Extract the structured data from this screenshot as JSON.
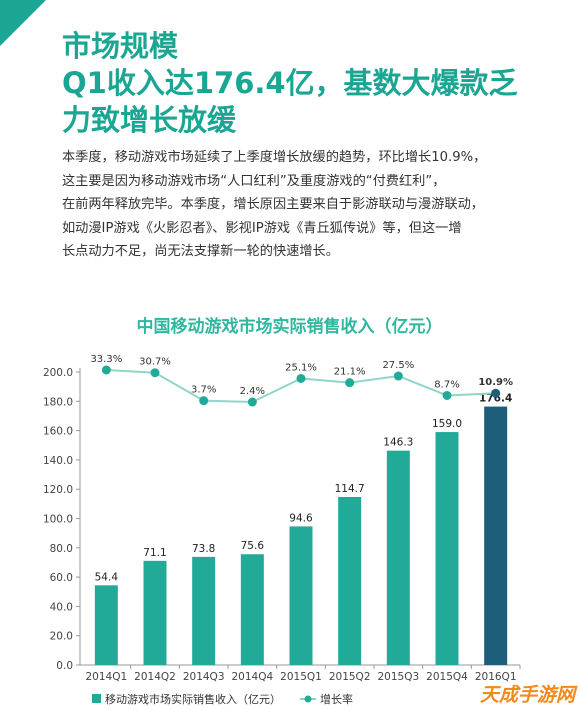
{
  "header": {
    "title_lines": [
      "市场规模",
      "Q1收入达176.4亿，基数大爆款乏",
      "力致增长放缓"
    ]
  },
  "body": {
    "lines": [
      "本季度，移动游戏市场延续了上季度增长放缓的趋势，环比增长10.9%，",
      "这主要是因为移动游戏市场“人口红利”及重度游戏的“付费红利”，",
      "在前两年释放完毕。本季度，增长原因主要来自于影游联动与漫游联动，",
      "如动漫IP游戏《火影忍者》、影视IP游戏《青丘狐传说》等，但这一增",
      "长点动力不足，尚无法支撑新一轮的快速增长。"
    ]
  },
  "watermark": "天成手游网",
  "colors": {
    "accent": "#1aa693",
    "bar": "#22aa98",
    "bar_highlight": "#1d5f7a",
    "line": "#8fd5c8",
    "dot": "#22aa98"
  },
  "chart_data": {
    "type": "bar",
    "title": "中国移动游戏市场实际销售收入（亿元）",
    "categories": [
      "2014Q1",
      "2014Q2",
      "2014Q3",
      "2014Q4",
      "2015Q1",
      "2015Q2",
      "2015Q3",
      "2015Q4",
      "2016Q1"
    ],
    "series": [
      {
        "name": "移动游戏市场实际销售收入（亿元）",
        "type": "bar",
        "values": [
          54.4,
          71.1,
          73.8,
          75.6,
          94.6,
          114.7,
          146.3,
          159.0,
          176.4
        ],
        "labels": [
          "54.4",
          "71.1",
          "73.8",
          "75.6",
          "94.6",
          "114.7",
          "146.3",
          "159.0",
          "176.4"
        ]
      },
      {
        "name": "增长率",
        "type": "line",
        "values": [
          33.3,
          30.7,
          3.7,
          2.4,
          25.1,
          21.1,
          27.5,
          8.7,
          10.9
        ],
        "labels": [
          "33.3%",
          "30.7%",
          "3.7%",
          "2.4%",
          "25.1%",
          "21.1%",
          "27.5%",
          "8.7%",
          "10.9%"
        ]
      }
    ],
    "y_ticks": [
      "0.0",
      "20.0",
      "40.0",
      "60.0",
      "80.0",
      "100.0",
      "120.0",
      "140.0",
      "160.0",
      "180.0",
      "200.0"
    ],
    "ylim": [
      0,
      200
    ],
    "highlight_index": 8,
    "legend": [
      "移动游戏市场实际销售收入（亿元）",
      "增长率"
    ],
    "legend_position": "bottom"
  }
}
